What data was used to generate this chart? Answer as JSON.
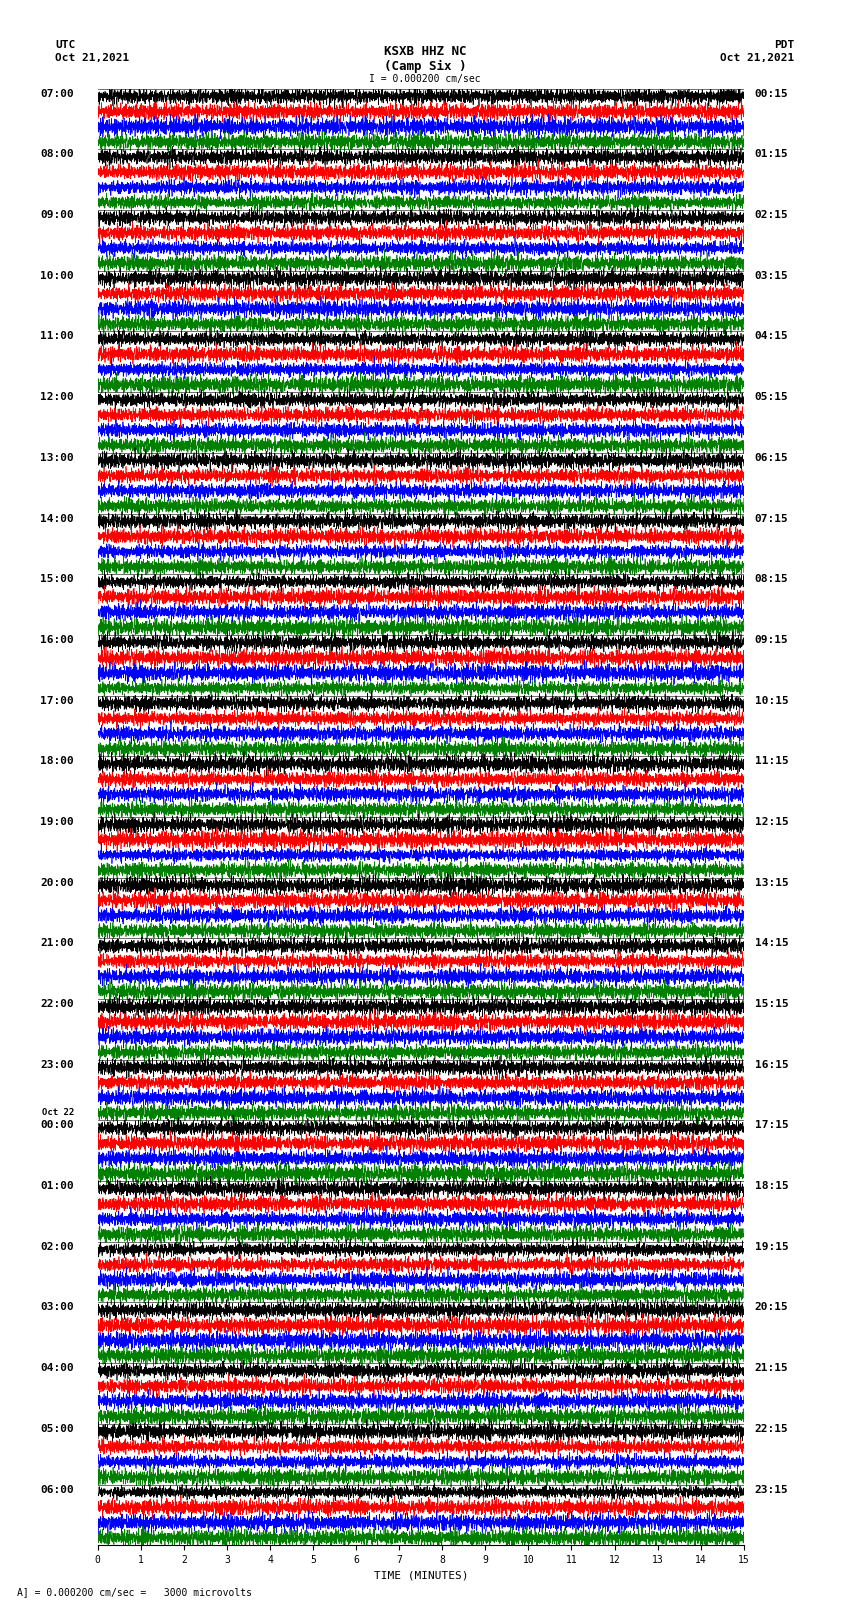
{
  "title_line1": "KSXB HHZ NC",
  "title_line2": "(Camp Six )",
  "scale_text": "I = 0.000200 cm/sec",
  "left_label_top": "UTC",
  "left_label_date": "Oct 21,2021",
  "right_label_top": "PDT",
  "right_label_date": "Oct 21,2021",
  "xlabel": "TIME (MINUTES)",
  "bottom_note": "A] = 0.000200 cm/sec =   3000 microvolts",
  "utc_labels": [
    "07:00",
    "08:00",
    "09:00",
    "10:00",
    "11:00",
    "12:00",
    "13:00",
    "14:00",
    "15:00",
    "16:00",
    "17:00",
    "18:00",
    "19:00",
    "20:00",
    "21:00",
    "22:00",
    "23:00",
    "Oct 22\n00:00",
    "01:00",
    "02:00",
    "03:00",
    "04:00",
    "05:00",
    "06:00"
  ],
  "pdt_labels": [
    "00:15",
    "01:15",
    "02:15",
    "03:15",
    "04:15",
    "05:15",
    "06:15",
    "07:15",
    "08:15",
    "09:15",
    "10:15",
    "11:15",
    "12:15",
    "13:15",
    "14:15",
    "15:15",
    "16:15",
    "17:15",
    "18:15",
    "19:15",
    "20:15",
    "21:15",
    "22:15",
    "23:15"
  ],
  "n_rows": 24,
  "colors": [
    "black",
    "red",
    "blue",
    "green"
  ],
  "noise_seed": 42,
  "bg_color": "white",
  "trace_linewidth": 0.5,
  "font_size_labels": 8,
  "font_size_title": 9,
  "font_size_ticks": 7,
  "font_size_bottom": 7
}
